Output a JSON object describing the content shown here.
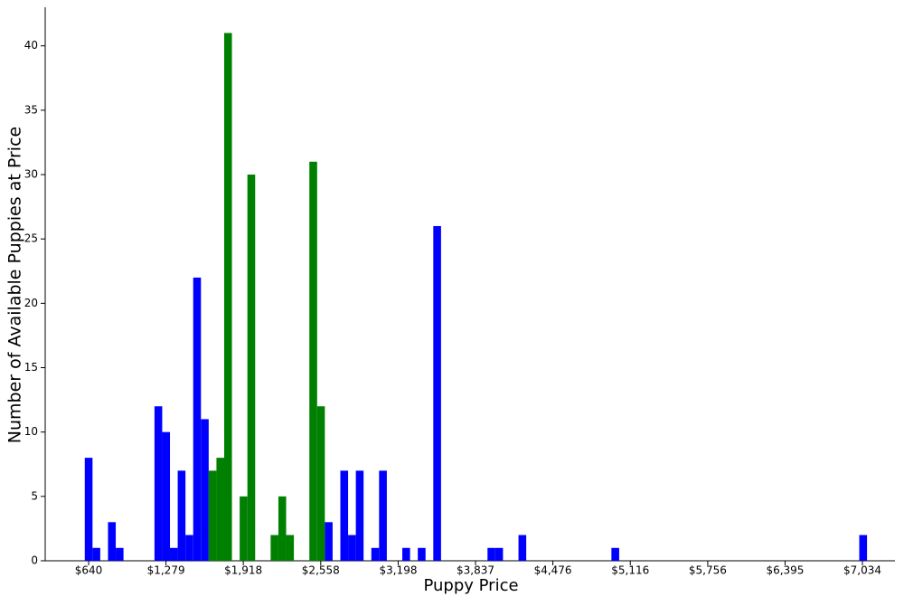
{
  "chart_data": {
    "type": "histogram",
    "xlabel": "Puppy Price",
    "ylabel": "Number of Available Puppies at Price",
    "bins": [
      608,
      672,
      736,
      800,
      864,
      928,
      992,
      1056,
      1120,
      1184,
      1248,
      1312,
      1376,
      1440,
      1504,
      1568,
      1632,
      1696,
      1760,
      1824,
      1888,
      1952,
      2016,
      2080,
      2144,
      2208,
      2272,
      2336,
      2400,
      2464,
      2528,
      2592,
      2656,
      2720,
      2784,
      2848,
      2912,
      2976,
      3040,
      3104,
      3168,
      3232,
      3296,
      3360,
      3424,
      3488,
      3552,
      3616,
      3680,
      3744,
      3808,
      3872,
      3936,
      4000,
      4064,
      4128,
      4192,
      4256,
      4320,
      4384,
      4448,
      4512,
      4576,
      4640,
      4704,
      4768,
      4832,
      4896,
      4960,
      5024,
      5088,
      5152,
      5216,
      5280,
      5344,
      5408,
      5472,
      5536,
      5600,
      5664,
      5728,
      5792,
      5856,
      5920,
      5984,
      6048,
      6112,
      6176,
      6240,
      6304,
      6368,
      6432,
      6496,
      6560,
      6624,
      6688,
      6752,
      6816,
      6880,
      6944,
      7008,
      7072
    ],
    "values": [
      8,
      1,
      0,
      3,
      1,
      0,
      0,
      0,
      0,
      12,
      10,
      1,
      7,
      2,
      22,
      11,
      7,
      8,
      41,
      0,
      5,
      30,
      0,
      0,
      2,
      5,
      2,
      0,
      0,
      31,
      12,
      3,
      0,
      7,
      2,
      7,
      0,
      1,
      7,
      0,
      0,
      1,
      0,
      1,
      0,
      26,
      0,
      0,
      0,
      0,
      0,
      0,
      1,
      1,
      0,
      0,
      2,
      0,
      0,
      0,
      0,
      0,
      0,
      0,
      0,
      0,
      0,
      0,
      1,
      0,
      0,
      0,
      0,
      0,
      0,
      0,
      0,
      0,
      0,
      0,
      0,
      0,
      0,
      0,
      0,
      0,
      0,
      0,
      0,
      0,
      0,
      0,
      0,
      0,
      0,
      0,
      0,
      0,
      0,
      0,
      2
    ],
    "colors": [
      "blue",
      "blue",
      "blue",
      "blue",
      "blue",
      "blue",
      "blue",
      "blue",
      "blue",
      "blue",
      "blue",
      "blue",
      "blue",
      "blue",
      "blue",
      "blue",
      "green",
      "green",
      "green",
      "green",
      "green",
      "green",
      "green",
      "green",
      "green",
      "green",
      "green",
      "green",
      "green",
      "green",
      "green",
      "blue",
      "blue",
      "blue",
      "blue",
      "blue",
      "blue",
      "blue",
      "blue",
      "blue",
      "blue",
      "blue",
      "blue",
      "blue",
      "blue",
      "blue",
      "blue",
      "blue",
      "blue",
      "blue",
      "blue",
      "blue",
      "blue",
      "blue",
      "blue",
      "blue",
      "blue",
      "blue",
      "blue",
      "blue",
      "blue",
      "blue",
      "blue",
      "blue",
      "blue",
      "blue",
      "blue",
      "blue",
      "blue",
      "blue",
      "blue",
      "blue",
      "blue",
      "blue",
      "blue",
      "blue",
      "blue",
      "blue",
      "blue",
      "blue",
      "blue",
      "blue",
      "blue",
      "blue",
      "blue",
      "blue",
      "blue",
      "blue",
      "blue",
      "blue",
      "blue",
      "blue",
      "blue",
      "blue",
      "blue",
      "blue",
      "blue",
      "blue",
      "blue",
      "blue",
      "blue"
    ],
    "xlim": [
      281,
      7303
    ],
    "ylim": [
      0,
      43
    ],
    "xticks": [
      {
        "value": 640,
        "label": "$640"
      },
      {
        "value": 1279,
        "label": "$1,279"
      },
      {
        "value": 1918,
        "label": "$1,918"
      },
      {
        "value": 2558,
        "label": "$2,558"
      },
      {
        "value": 3198,
        "label": "$3,198"
      },
      {
        "value": 3837,
        "label": "$3,837"
      },
      {
        "value": 4476,
        "label": "$4,476"
      },
      {
        "value": 5116,
        "label": "$5,116"
      },
      {
        "value": 5756,
        "label": "$5,756"
      },
      {
        "value": 6395,
        "label": "$6,395"
      },
      {
        "value": 7034,
        "label": "$7,034"
      }
    ],
    "yticks": [
      0,
      5,
      10,
      15,
      20,
      25,
      30,
      35,
      40
    ]
  }
}
